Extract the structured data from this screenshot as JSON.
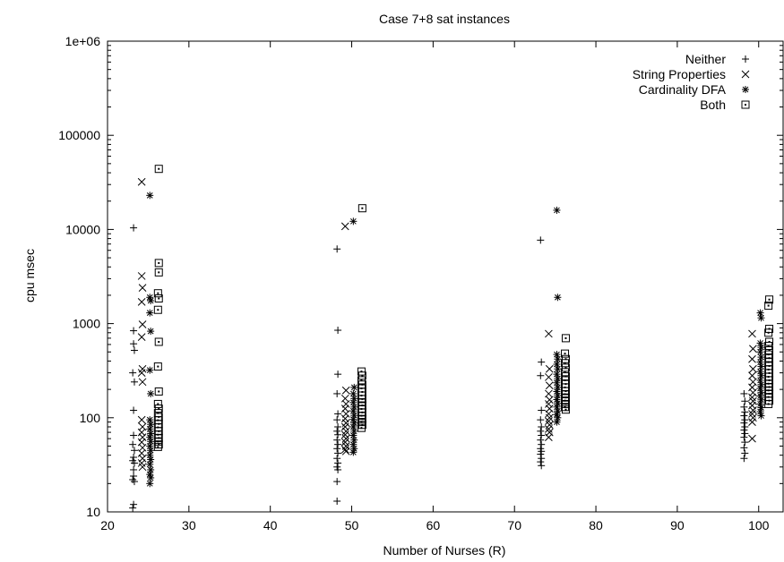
{
  "chart_data": {
    "type": "scatter",
    "title": "Case 7+8 sat instances",
    "xlabel": "Number of Nurses (R)",
    "ylabel": "cpu msec",
    "xlim": [
      20,
      103
    ],
    "ylim": [
      10,
      1000000
    ],
    "yscale": "log",
    "grid": false,
    "legend_position": "top-right",
    "x_ticks": [
      20,
      30,
      40,
      50,
      60,
      70,
      80,
      90,
      100
    ],
    "x_tick_labels": [
      "20",
      "30",
      "40",
      "50",
      "60",
      "70",
      "80",
      "90",
      "100"
    ],
    "y_ticks": [
      10,
      100,
      1000,
      10000,
      100000,
      1000000
    ],
    "y_tick_labels": [
      "10",
      "100",
      "1000",
      "10000",
      "100000",
      "1e+06"
    ],
    "series": [
      {
        "name": "Neither",
        "marker": "plus",
        "points": [
          [
            23.2,
            10400
          ],
          [
            23.2,
            840
          ],
          [
            23.2,
            610
          ],
          [
            23.3,
            520
          ],
          [
            23.1,
            300
          ],
          [
            23.3,
            240
          ],
          [
            23.2,
            120
          ],
          [
            23.2,
            65
          ],
          [
            23.1,
            52
          ],
          [
            23.3,
            45
          ],
          [
            23.2,
            38
          ],
          [
            23.1,
            35
          ],
          [
            23.3,
            33
          ],
          [
            23.2,
            28
          ],
          [
            23.2,
            24
          ],
          [
            23.1,
            22
          ],
          [
            23.3,
            21
          ],
          [
            23.2,
            12
          ],
          [
            23.1,
            11
          ],
          [
            48.2,
            6200
          ],
          [
            48.3,
            850
          ],
          [
            48.3,
            290
          ],
          [
            48.2,
            180
          ],
          [
            48.3,
            110
          ],
          [
            48.2,
            95
          ],
          [
            48.3,
            80
          ],
          [
            48.2,
            72
          ],
          [
            48.3,
            66
          ],
          [
            48.2,
            58
          ],
          [
            48.3,
            52
          ],
          [
            48.2,
            47
          ],
          [
            48.3,
            42
          ],
          [
            48.2,
            37
          ],
          [
            48.3,
            33
          ],
          [
            48.2,
            30
          ],
          [
            48.3,
            28
          ],
          [
            48.2,
            21
          ],
          [
            48.2,
            13
          ],
          [
            73.2,
            7700
          ],
          [
            73.3,
            390
          ],
          [
            73.2,
            280
          ],
          [
            73.3,
            120
          ],
          [
            73.2,
            95
          ],
          [
            73.3,
            80
          ],
          [
            73.2,
            72
          ],
          [
            73.3,
            65
          ],
          [
            73.2,
            58
          ],
          [
            73.3,
            52
          ],
          [
            73.2,
            47
          ],
          [
            73.3,
            44
          ],
          [
            73.2,
            41
          ],
          [
            73.3,
            37
          ],
          [
            73.2,
            34
          ],
          [
            73.3,
            31
          ],
          [
            98.2,
            180
          ],
          [
            98.3,
            150
          ],
          [
            98.2,
            130
          ],
          [
            98.3,
            115
          ],
          [
            98.2,
            105
          ],
          [
            98.3,
            95
          ],
          [
            98.2,
            88
          ],
          [
            98.3,
            80
          ],
          [
            98.2,
            74
          ],
          [
            98.3,
            68
          ],
          [
            98.2,
            62
          ],
          [
            98.3,
            55
          ],
          [
            98.2,
            48
          ],
          [
            98.3,
            42
          ],
          [
            98.2,
            37
          ]
        ]
      },
      {
        "name": "String Properties",
        "marker": "cross",
        "points": [
          [
            24.2,
            32000
          ],
          [
            24.2,
            3200
          ],
          [
            24.3,
            2400
          ],
          [
            24.2,
            1700
          ],
          [
            24.3,
            980
          ],
          [
            24.2,
            720
          ],
          [
            24.3,
            330
          ],
          [
            24.2,
            300
          ],
          [
            24.3,
            240
          ],
          [
            24.2,
            95
          ],
          [
            24.3,
            80
          ],
          [
            24.2,
            70
          ],
          [
            24.3,
            62
          ],
          [
            24.2,
            55
          ],
          [
            24.3,
            48
          ],
          [
            24.2,
            42
          ],
          [
            24.3,
            37
          ],
          [
            24.2,
            33
          ],
          [
            24.3,
            30
          ],
          [
            49.2,
            10800
          ],
          [
            49.3,
            195
          ],
          [
            49.2,
            160
          ],
          [
            49.3,
            140
          ],
          [
            49.2,
            125
          ],
          [
            49.3,
            110
          ],
          [
            49.2,
            98
          ],
          [
            49.3,
            88
          ],
          [
            49.2,
            80
          ],
          [
            49.3,
            72
          ],
          [
            49.2,
            66
          ],
          [
            49.3,
            60
          ],
          [
            49.2,
            55
          ],
          [
            49.3,
            50
          ],
          [
            49.2,
            46
          ],
          [
            49.3,
            44
          ],
          [
            74.2,
            780
          ],
          [
            74.3,
            330
          ],
          [
            74.2,
            270
          ],
          [
            74.3,
            220
          ],
          [
            74.2,
            180
          ],
          [
            74.3,
            155
          ],
          [
            74.2,
            140
          ],
          [
            74.3,
            125
          ],
          [
            74.2,
            110
          ],
          [
            74.3,
            100
          ],
          [
            74.2,
            92
          ],
          [
            74.3,
            84
          ],
          [
            74.2,
            76
          ],
          [
            74.3,
            70
          ],
          [
            74.2,
            62
          ],
          [
            99.2,
            780
          ],
          [
            99.3,
            540
          ],
          [
            99.2,
            420
          ],
          [
            99.3,
            330
          ],
          [
            99.2,
            280
          ],
          [
            99.3,
            240
          ],
          [
            99.2,
            210
          ],
          [
            99.3,
            185
          ],
          [
            99.2,
            165
          ],
          [
            99.3,
            150
          ],
          [
            99.2,
            135
          ],
          [
            99.3,
            120
          ],
          [
            99.2,
            110
          ],
          [
            99.3,
            100
          ],
          [
            99.2,
            90
          ],
          [
            99.2,
            60
          ]
        ]
      },
      {
        "name": "Cardinality DFA",
        "marker": "star",
        "points": [
          [
            25.2,
            23000
          ],
          [
            25.2,
            1900
          ],
          [
            25.3,
            1750
          ],
          [
            25.2,
            1300
          ],
          [
            25.3,
            830
          ],
          [
            25.2,
            320
          ],
          [
            25.3,
            180
          ],
          [
            25.2,
            95
          ],
          [
            25.3,
            85
          ],
          [
            25.2,
            76
          ],
          [
            25.3,
            68
          ],
          [
            25.2,
            62
          ],
          [
            25.3,
            56
          ],
          [
            25.2,
            50
          ],
          [
            25.3,
            45
          ],
          [
            25.2,
            40
          ],
          [
            25.3,
            36
          ],
          [
            25.2,
            32
          ],
          [
            25.3,
            28
          ],
          [
            25.2,
            25
          ],
          [
            25.3,
            23
          ],
          [
            25.2,
            20
          ],
          [
            50.2,
            12200
          ],
          [
            50.3,
            210
          ],
          [
            50.2,
            180
          ],
          [
            50.3,
            160
          ],
          [
            50.2,
            145
          ],
          [
            50.3,
            130
          ],
          [
            50.2,
            118
          ],
          [
            50.3,
            106
          ],
          [
            50.2,
            96
          ],
          [
            50.3,
            88
          ],
          [
            50.2,
            80
          ],
          [
            50.3,
            72
          ],
          [
            50.2,
            65
          ],
          [
            50.3,
            58
          ],
          [
            50.2,
            52
          ],
          [
            50.3,
            47
          ],
          [
            50.2,
            43
          ],
          [
            75.2,
            16000
          ],
          [
            75.3,
            1900
          ],
          [
            75.2,
            470
          ],
          [
            75.3,
            420
          ],
          [
            75.2,
            370
          ],
          [
            75.3,
            330
          ],
          [
            75.2,
            290
          ],
          [
            75.3,
            260
          ],
          [
            75.2,
            235
          ],
          [
            75.3,
            210
          ],
          [
            75.2,
            190
          ],
          [
            75.3,
            172
          ],
          [
            75.2,
            156
          ],
          [
            75.3,
            142
          ],
          [
            75.2,
            130
          ],
          [
            75.3,
            118
          ],
          [
            75.2,
            108
          ],
          [
            75.3,
            100
          ],
          [
            75.2,
            90
          ],
          [
            100.2,
            1300
          ],
          [
            100.3,
            1150
          ],
          [
            100.2,
            620
          ],
          [
            100.3,
            560
          ],
          [
            100.2,
            500
          ],
          [
            100.3,
            440
          ],
          [
            100.2,
            390
          ],
          [
            100.3,
            350
          ],
          [
            100.2,
            310
          ],
          [
            100.3,
            280
          ],
          [
            100.2,
            250
          ],
          [
            100.3,
            225
          ],
          [
            100.2,
            205
          ],
          [
            100.3,
            185
          ],
          [
            100.2,
            170
          ],
          [
            100.3,
            155
          ],
          [
            100.2,
            140
          ],
          [
            100.3,
            128
          ],
          [
            100.2,
            116
          ],
          [
            100.3,
            105
          ]
        ]
      },
      {
        "name": "Both",
        "marker": "square",
        "points": [
          [
            26.3,
            44000
          ],
          [
            26.3,
            4400
          ],
          [
            26.3,
            3500
          ],
          [
            26.2,
            2100
          ],
          [
            26.3,
            1850
          ],
          [
            26.2,
            1400
          ],
          [
            26.3,
            640
          ],
          [
            26.2,
            350
          ],
          [
            26.3,
            190
          ],
          [
            26.2,
            140
          ],
          [
            26.3,
            125
          ],
          [
            26.2,
            112
          ],
          [
            26.3,
            102
          ],
          [
            26.2,
            94
          ],
          [
            26.3,
            86
          ],
          [
            26.2,
            79
          ],
          [
            26.3,
            72
          ],
          [
            26.2,
            66
          ],
          [
            26.3,
            61
          ],
          [
            26.2,
            56
          ],
          [
            26.3,
            52
          ],
          [
            26.2,
            49
          ],
          [
            51.3,
            16800
          ],
          [
            51.2,
            310
          ],
          [
            51.3,
            280
          ],
          [
            51.2,
            250
          ],
          [
            51.3,
            225
          ],
          [
            51.2,
            205
          ],
          [
            51.3,
            188
          ],
          [
            51.2,
            172
          ],
          [
            51.3,
            158
          ],
          [
            51.2,
            146
          ],
          [
            51.3,
            135
          ],
          [
            51.2,
            124
          ],
          [
            51.3,
            114
          ],
          [
            51.2,
            105
          ],
          [
            51.3,
            97
          ],
          [
            51.2,
            90
          ],
          [
            51.3,
            84
          ],
          [
            51.2,
            78
          ],
          [
            76.3,
            700
          ],
          [
            76.2,
            480
          ],
          [
            76.3,
            420
          ],
          [
            76.2,
            380
          ],
          [
            76.3,
            340
          ],
          [
            76.2,
            305
          ],
          [
            76.3,
            275
          ],
          [
            76.2,
            250
          ],
          [
            76.3,
            228
          ],
          [
            76.2,
            210
          ],
          [
            76.3,
            192
          ],
          [
            76.2,
            178
          ],
          [
            76.3,
            164
          ],
          [
            76.2,
            152
          ],
          [
            76.3,
            140
          ],
          [
            76.2,
            130
          ],
          [
            76.3,
            122
          ],
          [
            101.3,
            1800
          ],
          [
            101.2,
            1550
          ],
          [
            101.3,
            880
          ],
          [
            101.2,
            800
          ],
          [
            101.3,
            640
          ],
          [
            101.2,
            580
          ],
          [
            101.3,
            520
          ],
          [
            101.2,
            470
          ],
          [
            101.3,
            430
          ],
          [
            101.2,
            390
          ],
          [
            101.3,
            355
          ],
          [
            101.2,
            325
          ],
          [
            101.3,
            298
          ],
          [
            101.2,
            272
          ],
          [
            101.3,
            250
          ],
          [
            101.2,
            230
          ],
          [
            101.3,
            212
          ],
          [
            101.2,
            195
          ],
          [
            101.3,
            180
          ],
          [
            101.2,
            166
          ],
          [
            101.3,
            152
          ],
          [
            101.2,
            140
          ]
        ]
      }
    ]
  }
}
